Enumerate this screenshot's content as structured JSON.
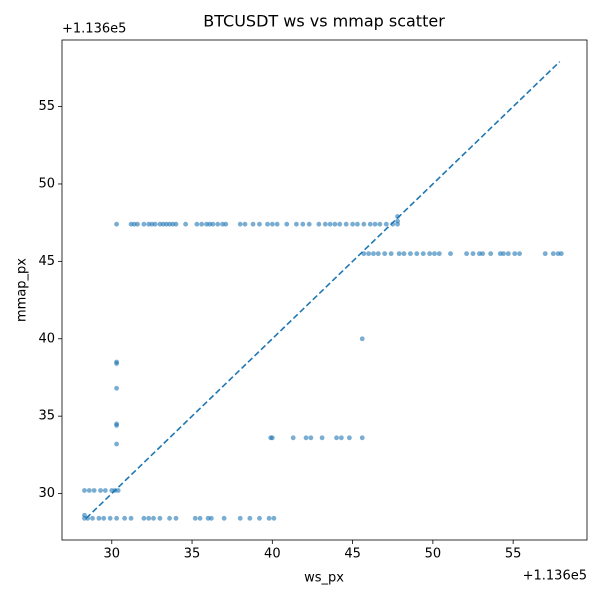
{
  "chart_data": {
    "type": "scatter",
    "title": "BTCUSDT ws vs mmap scatter",
    "x_label": "ws_px",
    "y_label": "mmap_px",
    "x_offset_label": "+1.136e5",
    "y_offset_label": "+1.136e5",
    "color": "#1f77b4",
    "xlim": [
      26.9,
      59.6
    ],
    "ylim": [
      27.0,
      59.3
    ],
    "xticks": [
      30,
      35,
      40,
      45,
      50,
      55
    ],
    "yticks": [
      30,
      35,
      40,
      45,
      50,
      55
    ],
    "grid": false,
    "reference_line": {
      "x": [
        28.4,
        57.9
      ],
      "y": [
        28.4,
        57.9
      ],
      "style": "dashed"
    },
    "x": [
      30.3,
      31.2,
      31.4,
      31.6,
      32.0,
      32.3,
      32.5,
      32.7,
      33.0,
      33.2,
      33.4,
      33.6,
      33.8,
      34.0,
      34.6,
      35.3,
      35.6,
      35.9,
      36.1,
      36.3,
      36.6,
      36.9,
      37.1,
      38.0,
      38.3,
      38.8,
      39.2,
      39.7,
      40.0,
      40.3,
      40.9,
      41.5,
      41.9,
      42.3,
      42.9,
      43.3,
      43.6,
      43.9,
      44.2,
      44.6,
      45.0,
      45.3,
      45.7,
      46.1,
      46.4,
      46.7,
      47.1,
      47.5,
      47.8,
      47.8,
      47.8,
      45.7,
      46.0,
      46.3,
      46.6,
      47.0,
      47.4,
      47.9,
      48.2,
      48.6,
      49.0,
      49.4,
      49.8,
      50.1,
      50.4,
      51.1,
      52.1,
      52.5,
      52.9,
      53.1,
      53.6,
      54.2,
      54.4,
      54.7,
      55.1,
      55.4,
      57.0,
      57.5,
      57.8,
      58.0,
      45.6,
      39.9,
      40.0,
      41.3,
      42.1,
      42.4,
      43.1,
      44.0,
      44.3,
      44.8,
      45.6,
      30.3,
      30.3,
      30.3,
      30.3,
      30.3,
      30.3,
      28.3,
      28.6,
      28.9,
      29.3,
      29.6,
      30.0,
      30.2,
      30.4,
      28.3,
      28.5,
      28.8,
      29.2,
      29.5,
      29.9,
      30.3,
      30.8,
      31.2,
      32.0,
      32.3,
      32.6,
      33.0,
      33.6,
      34.0,
      35.2,
      35.5,
      36.0,
      36.2,
      37.0,
      38.0,
      38.6,
      39.2,
      39.8,
      40.1,
      28.3
    ],
    "values": [
      47.4,
      47.4,
      47.4,
      47.4,
      47.4,
      47.4,
      47.4,
      47.4,
      47.4,
      47.4,
      47.4,
      47.4,
      47.4,
      47.4,
      47.4,
      47.4,
      47.4,
      47.4,
      47.4,
      47.4,
      47.4,
      47.4,
      47.4,
      47.4,
      47.4,
      47.4,
      47.4,
      47.4,
      47.4,
      47.4,
      47.4,
      47.4,
      47.4,
      47.4,
      47.4,
      47.4,
      47.4,
      47.4,
      47.4,
      47.4,
      47.4,
      47.4,
      47.4,
      47.4,
      47.4,
      47.4,
      47.4,
      47.4,
      47.4,
      47.6,
      47.9,
      45.5,
      45.5,
      45.5,
      45.5,
      45.5,
      45.5,
      45.5,
      45.5,
      45.5,
      45.5,
      45.5,
      45.5,
      45.5,
      45.5,
      45.5,
      45.5,
      45.5,
      45.5,
      45.5,
      45.5,
      45.5,
      45.5,
      45.5,
      45.5,
      45.5,
      45.5,
      45.5,
      45.5,
      45.5,
      40.0,
      33.6,
      33.6,
      33.6,
      33.6,
      33.6,
      33.6,
      33.6,
      33.6,
      33.6,
      33.6,
      33.2,
      34.4,
      34.5,
      36.8,
      38.4,
      38.5,
      30.2,
      30.2,
      30.2,
      30.2,
      30.2,
      30.2,
      30.2,
      30.2,
      28.4,
      28.4,
      28.4,
      28.4,
      28.4,
      28.4,
      28.4,
      28.4,
      28.4,
      28.4,
      28.4,
      28.4,
      28.4,
      28.4,
      28.4,
      28.4,
      28.4,
      28.4,
      28.4,
      28.4,
      28.4,
      28.4,
      28.4,
      28.4,
      28.4,
      28.6
    ]
  }
}
